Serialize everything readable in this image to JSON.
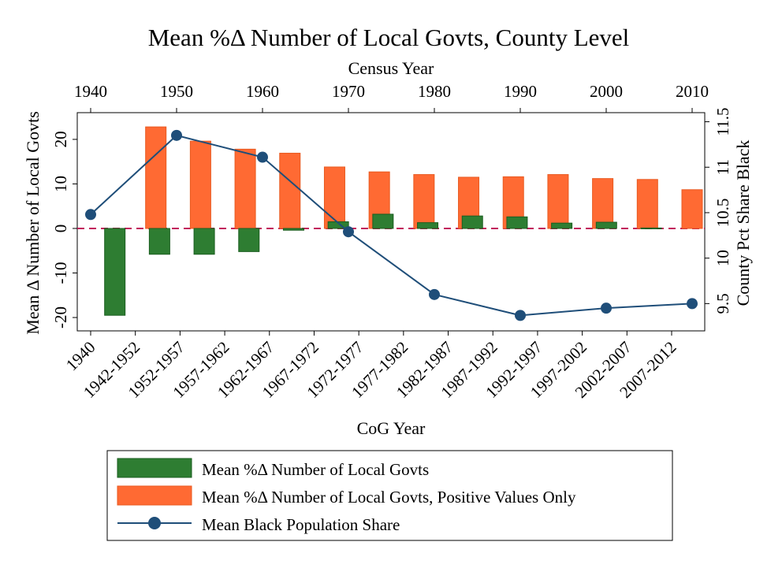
{
  "chart_data": {
    "type": "bar",
    "title": "Mean %Δ Number of Local Govts, County Level",
    "top_axis": {
      "label": "Census Year",
      "ticks": [
        1940,
        1950,
        1960,
        1970,
        1980,
        1990,
        2000,
        2010
      ],
      "range": [
        1940,
        2010
      ]
    },
    "xlabel": "CoG Year",
    "categories": [
      "1940",
      "1942-1952",
      "1952-1957",
      "1957-1962",
      "1962-1967",
      "1967-1972",
      "1972-1977",
      "1977-1982",
      "1982-1987",
      "1987-1992",
      "1992-1997",
      "1997-2002",
      "2002-2007",
      "2007-2012"
    ],
    "ylabel": "Mean Δ Number of Local Govts",
    "ylim": [
      -23,
      26
    ],
    "yticks": [
      -20,
      -10,
      0,
      10,
      20
    ],
    "y2label": "County Pct Share Black",
    "y2lim": [
      9.2,
      11.6
    ],
    "y2ticks": [
      9.5,
      10,
      10.5,
      11,
      11.5
    ],
    "y2ticklabels": [
      "9.5",
      "10",
      "10.5",
      "11",
      "11.5"
    ],
    "zero_line": true,
    "grid": false,
    "legend_position": "bottom",
    "series": [
      {
        "name": "Mean %Δ Number of Local Govts",
        "type": "bar",
        "color": "#2e7d32",
        "values": [
          null,
          -19.5,
          -5.8,
          -5.8,
          -5.2,
          -0.4,
          1.5,
          3.2,
          1.3,
          2.8,
          2.6,
          1.2,
          1.4,
          0.1
        ]
      },
      {
        "name": "Mean %Δ Number of Local Govts, Positive Values Only",
        "type": "bar",
        "color": "#ff6a33",
        "values": [
          null,
          22.8,
          19.6,
          17.8,
          16.9,
          13.8,
          12.7,
          12.1,
          11.5,
          11.6,
          12.1,
          11.2,
          11.0,
          8.7
        ]
      },
      {
        "name": "Mean Black Population Share",
        "type": "line",
        "axis": "right",
        "color": "#1f4e79",
        "x": [
          1940,
          1950,
          1960,
          1970,
          1980,
          1990,
          2000,
          2010
        ],
        "values": [
          10.48,
          11.35,
          11.11,
          10.29,
          9.6,
          9.37,
          9.45,
          9.5
        ]
      }
    ]
  }
}
